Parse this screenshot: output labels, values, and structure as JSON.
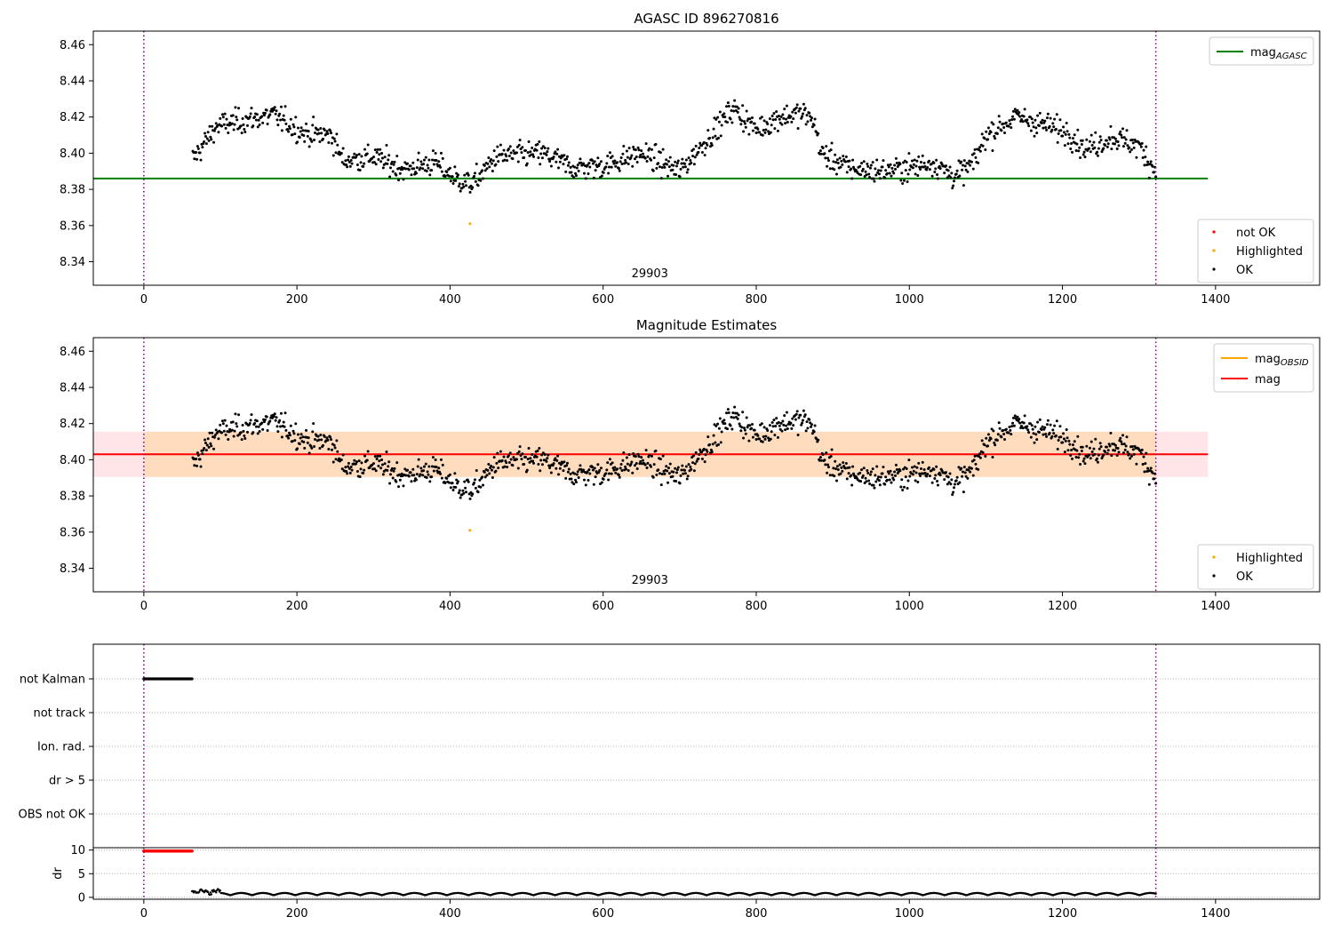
{
  "chart_data": [
    {
      "type": "scatter",
      "title": "AGASC ID 896270816",
      "xlim": [
        -66,
        1536
      ],
      "ylim": [
        8.327,
        8.4675
      ],
      "x_ticks": [
        0,
        200,
        400,
        600,
        800,
        1000,
        1200,
        1400
      ],
      "y_ticks": [
        8.34,
        8.36,
        8.38,
        8.4,
        8.42,
        8.44,
        8.46
      ],
      "y_tick_labels": [
        "8.34",
        "8.36",
        "8.38",
        "8.40",
        "8.42",
        "8.44",
        "8.46"
      ],
      "obsid_boundaries": [
        0,
        1322
      ],
      "obsid_label": "29903",
      "obsid_label_x": 661,
      "mag_agasc": 8.386,
      "highlighted": [
        {
          "x": 426,
          "y": 8.361
        }
      ],
      "legend_lines": [
        {
          "label": "mag",
          "subscript": "AGASC",
          "color": "#008000"
        }
      ],
      "legend_points": [
        {
          "label": "not OK",
          "color": "#ff0000"
        },
        {
          "label": "Highlighted",
          "color": "#ffa500"
        },
        {
          "label": "OK",
          "color": "#000000"
        }
      ],
      "legend_lines_position": "upper right",
      "legend_points_position": "lower right",
      "colors": {
        "ok": "#000000",
        "highlighted": "#ffa500",
        "not_ok": "#ff0000",
        "agasc_line": "#008000",
        "boundary": "#800080"
      }
    },
    {
      "type": "scatter",
      "title": "Magnitude Estimates",
      "xlim": [
        -66,
        1536
      ],
      "ylim": [
        8.327,
        8.4675
      ],
      "x_ticks": [
        0,
        200,
        400,
        600,
        800,
        1000,
        1200,
        1400
      ],
      "y_ticks": [
        8.34,
        8.36,
        8.38,
        8.4,
        8.42,
        8.44,
        8.46
      ],
      "y_tick_labels": [
        "8.34",
        "8.36",
        "8.38",
        "8.40",
        "8.42",
        "8.44",
        "8.46"
      ],
      "obsid_boundaries": [
        0,
        1322
      ],
      "obsid_label": "29903",
      "obsid_label_x": 661,
      "mag_obsid": 8.403,
      "mag": 8.403,
      "mag_band": [
        8.3905,
        8.4155
      ],
      "band_x": [
        0,
        1390
      ],
      "highlighted": [
        {
          "x": 426,
          "y": 8.361
        }
      ],
      "legend_lines": [
        {
          "label": "mag",
          "subscript": "OBSID",
          "color": "#ffa500"
        },
        {
          "label": "mag",
          "subscript": "",
          "color": "#ff0000"
        }
      ],
      "legend_points": [
        {
          "label": "Highlighted",
          "color": "#ffa500"
        },
        {
          "label": "OK",
          "color": "#000000"
        }
      ],
      "legend_lines_position": "upper right",
      "legend_points_position": "lower right",
      "colors": {
        "ok": "#000000",
        "highlighted": "#ffa500",
        "mag_line": "#ff0000",
        "obsid_band": "#ffdab9",
        "mag_band": "#ffe4e8",
        "boundary": "#800080"
      }
    },
    {
      "type": "scatter",
      "title": "",
      "xlim": [
        -66,
        1536
      ],
      "flag_rows": [
        "not Kalman",
        "not track",
        "Ion. rad.",
        "dr > 5",
        "OBS not OK"
      ],
      "flagged": [
        {
          "row": "not Kalman",
          "x_range": [
            0,
            63
          ]
        }
      ],
      "obsid_boundaries": [
        0,
        1322
      ],
      "colors": {
        "flag": "#000000",
        "grid": "#b0b0b0",
        "boundary": "#800080"
      }
    },
    {
      "type": "scatter",
      "title": "",
      "xlim": [
        -66,
        1536
      ],
      "ylim": [
        -0.4,
        10.5
      ],
      "ylabel": "dr",
      "x_ticks": [
        0,
        200,
        400,
        600,
        800,
        1000,
        1200,
        1400
      ],
      "y_ticks": [
        0,
        5,
        10
      ],
      "y_tick_labels": [
        "0",
        "5",
        "10"
      ],
      "dr_high": {
        "x_range": [
          0,
          63
        ],
        "value": 9.8
      },
      "dr_low": {
        "x_range": [
          63,
          1322
        ],
        "typical": 0.8
      },
      "obsid_boundaries": [
        0,
        1322
      ],
      "colors": {
        "high": "#ff0000",
        "low": "#000000",
        "boundary": "#800080"
      }
    }
  ]
}
